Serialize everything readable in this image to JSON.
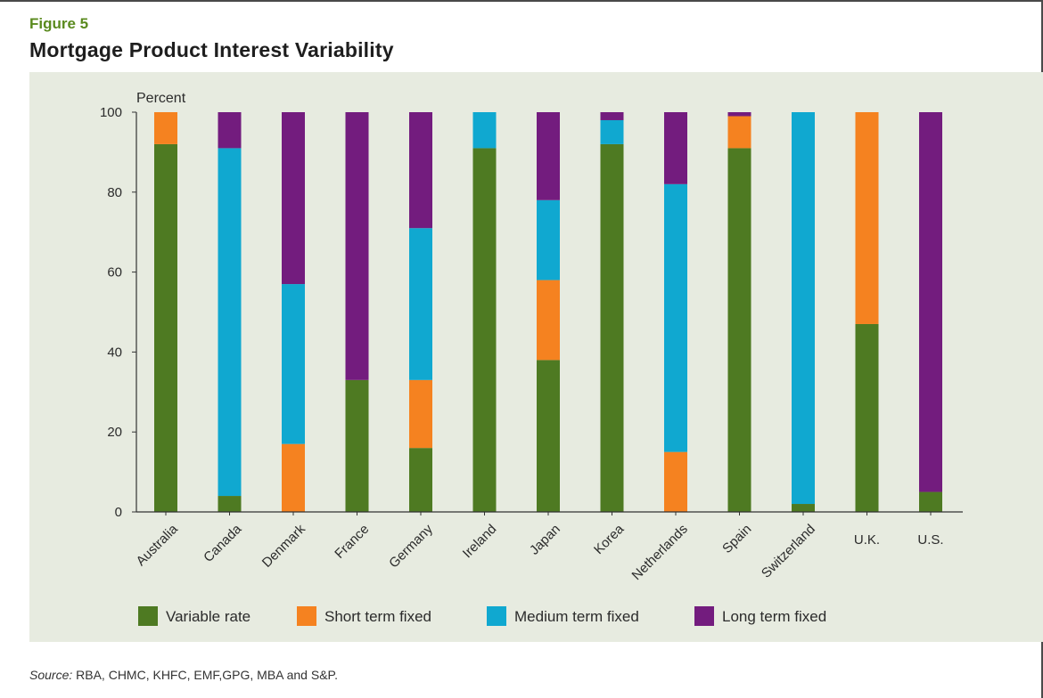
{
  "figure_label": "Figure 5",
  "title": "Mortgage Product Interest Variability",
  "source_prefix": "Source:",
  "source_text": " RBA, CHMC, KHFC, EMF,GPG, MBA and S&P.",
  "chart_data": {
    "type": "bar",
    "stacked": true,
    "ylabel": "Percent",
    "ylim": [
      0,
      100
    ],
    "yticks": [
      0,
      20,
      40,
      60,
      80,
      100
    ],
    "categories": [
      "Australia",
      "Canada",
      "Denmark",
      "France",
      "Germany",
      "Ireland",
      "Japan",
      "Korea",
      "Netherlands",
      "Spain",
      "Switzerland",
      "U.K.",
      "U.S."
    ],
    "rotated_categories": [
      "Australia",
      "Canada",
      "Denmark",
      "France",
      "Germany",
      "Ireland",
      "Japan",
      "Korea",
      "Netherlands",
      "Spain",
      "Switzerland"
    ],
    "series": [
      {
        "name": "Variable rate",
        "color": "#4e7a22",
        "values": [
          92,
          4,
          0,
          33,
          16,
          91,
          38,
          92,
          0,
          91,
          2,
          47,
          5
        ]
      },
      {
        "name": "Short term fixed",
        "color": "#f58220",
        "values": [
          8,
          0,
          17,
          0,
          17,
          0,
          20,
          0,
          15,
          8,
          0,
          53,
          0
        ]
      },
      {
        "name": "Medium term fixed",
        "color": "#10a8d0",
        "values": [
          0,
          87,
          40,
          0,
          38,
          9,
          20,
          6,
          67,
          0,
          98,
          0,
          0
        ]
      },
      {
        "name": "Long term fixed",
        "color": "#731c7e",
        "values": [
          0,
          9,
          43,
          67,
          29,
          0,
          22,
          2,
          18,
          1,
          0,
          0,
          95
        ]
      }
    ],
    "legend_position": "bottom",
    "grid": false
  }
}
